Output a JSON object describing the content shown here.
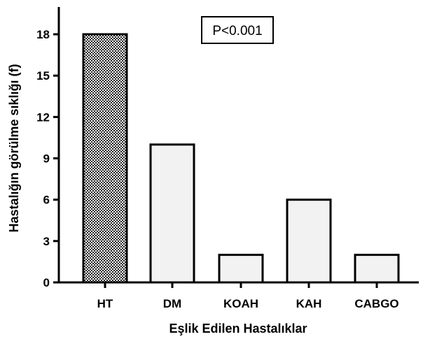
{
  "chart_data": {
    "type": "bar",
    "categories": [
      "HT",
      "DM",
      "KOAH",
      "KAH",
      "CABGO"
    ],
    "values": [
      18,
      10,
      2,
      6,
      2
    ],
    "xlabel": "Eşlik Edilen Hastalıklar",
    "ylabel": "Hastalığın görülme sıklığı (f)",
    "ylim": [
      0,
      20
    ],
    "yticks": [
      0,
      3,
      6,
      9,
      12,
      15,
      18
    ],
    "annotation": "P<0.001",
    "grid": false,
    "legend": "none",
    "colors": {
      "highlight_pattern": "crosshatch",
      "bar_fill": "#f2f2f2",
      "stroke": "#000000"
    },
    "highlighted_category": "HT"
  }
}
